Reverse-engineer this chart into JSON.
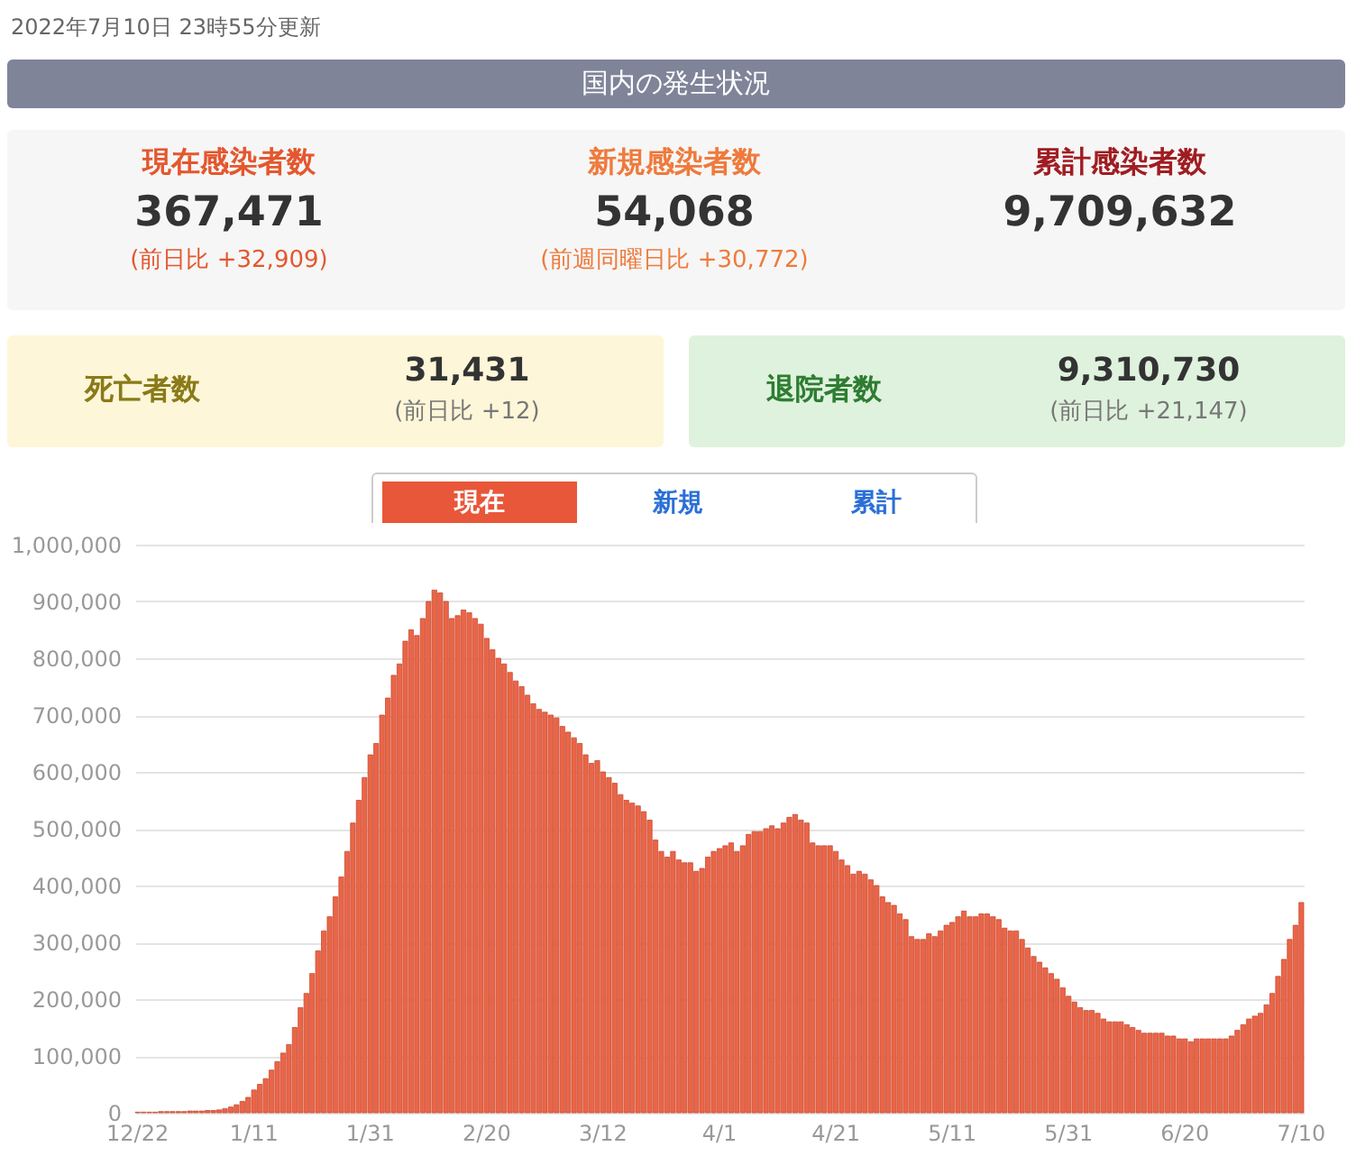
{
  "chart_data": [
    {
      "type": "other",
      "title": "国内の発生状況",
      "subtitle": "2022年7月10日 23時55分更新",
      "annotations": [
        "現在感染者数",
        "367,471",
        "(前日比 +32,909)",
        "新規感染者数",
        "54,068",
        "(前週同曜日比 +30,772)",
        "累計感染者数",
        "9,709,632",
        "死亡者数",
        "31,431",
        "(前日比 +12)",
        "退院者数",
        "9,310,730",
        "(前日比 +21,147)",
        "現在",
        "新規",
        "累計"
      ]
    },
    {
      "type": "bar",
      "color": "#ea6548",
      "ylim": [
        0,
        1000000
      ],
      "yticks": [
        0,
        {
          "value": 100000,
          "label": "100,000"
        },
        {
          "value": 200000,
          "label": "200,000"
        },
        {
          "value": 300000,
          "label": "300,000"
        },
        {
          "value": 400000,
          "label": "400,000"
        },
        {
          "value": 500000,
          "label": "500,000"
        },
        {
          "value": 600000,
          "label": "600,000"
        },
        {
          "value": 700000,
          "label": "700,000"
        },
        {
          "value": 800000,
          "label": "800,000"
        },
        {
          "value": 900000,
          "label": "900,000"
        },
        {
          "value": 1000000,
          "label": "1,000,000"
        }
      ],
      "grid": "y",
      "categories": [
        "12/22",
        null,
        null,
        null,
        null,
        null,
        null,
        null,
        null,
        null,
        null,
        null,
        null,
        null,
        null,
        null,
        null,
        null,
        null,
        null,
        "1/11",
        null,
        null,
        null,
        null,
        null,
        null,
        null,
        null,
        null,
        null,
        null,
        null,
        null,
        null,
        null,
        null,
        null,
        null,
        null,
        "1/31",
        null,
        null,
        null,
        null,
        null,
        null,
        null,
        null,
        null,
        null,
        null,
        null,
        null,
        null,
        null,
        null,
        null,
        null,
        null,
        "2/20",
        null,
        null,
        null,
        null,
        null,
        null,
        null,
        null,
        null,
        null,
        null,
        null,
        null,
        null,
        null,
        null,
        null,
        null,
        null,
        "3/12",
        null,
        null,
        null,
        null,
        null,
        null,
        null,
        null,
        null,
        null,
        null,
        null,
        null,
        null,
        null,
        null,
        null,
        null,
        null,
        "4/1",
        null,
        null,
        null,
        null,
        null,
        null,
        null,
        null,
        null,
        null,
        null,
        null,
        null,
        null,
        null,
        null,
        null,
        null,
        null,
        "4/21",
        null,
        null,
        null,
        null,
        null,
        null,
        null,
        null,
        null,
        null,
        null,
        null,
        null,
        null,
        null,
        null,
        null,
        null,
        null,
        "5/11",
        null,
        null,
        null,
        null,
        null,
        null,
        null,
        null,
        null,
        null,
        null,
        null,
        null,
        null,
        null,
        null,
        null,
        null,
        null,
        "5/31",
        null,
        null,
        null,
        null,
        null,
        null,
        null,
        null,
        null,
        null,
        null,
        null,
        null,
        null,
        null,
        null,
        null,
        null,
        null,
        "6/20",
        null,
        null,
        null,
        null,
        null,
        null,
        null,
        null,
        null,
        null,
        null,
        null,
        null,
        null,
        null,
        null,
        null,
        null,
        null,
        "7/10"
      ],
      "values": [
        1000,
        1000,
        1000,
        1000,
        2000,
        2000,
        2000,
        2000,
        2000,
        3000,
        3000,
        3000,
        4000,
        4000,
        5000,
        7000,
        10000,
        14000,
        20000,
        27000,
        40000,
        50000,
        60000,
        75000,
        90000,
        105000,
        120000,
        150000,
        185000,
        210000,
        245000,
        285000,
        320000,
        345000,
        380000,
        415000,
        460000,
        510000,
        550000,
        590000,
        630000,
        650000,
        700000,
        730000,
        770000,
        790000,
        830000,
        850000,
        840000,
        870000,
        900000,
        920000,
        915000,
        900000,
        870000,
        875000,
        885000,
        880000,
        870000,
        860000,
        835000,
        815000,
        800000,
        790000,
        775000,
        760000,
        750000,
        735000,
        720000,
        710000,
        705000,
        700000,
        695000,
        680000,
        670000,
        660000,
        650000,
        630000,
        615000,
        620000,
        600000,
        590000,
        580000,
        560000,
        550000,
        545000,
        540000,
        530000,
        515000,
        480000,
        460000,
        450000,
        460000,
        445000,
        440000,
        440000,
        425000,
        430000,
        450000,
        460000,
        465000,
        470000,
        475000,
        460000,
        470000,
        490000,
        495000,
        495000,
        500000,
        505000,
        500000,
        510000,
        520000,
        525000,
        515000,
        510000,
        475000,
        470000,
        470000,
        470000,
        460000,
        445000,
        435000,
        420000,
        425000,
        420000,
        410000,
        400000,
        380000,
        370000,
        365000,
        350000,
        340000,
        310000,
        305000,
        305000,
        315000,
        310000,
        320000,
        330000,
        335000,
        345000,
        355000,
        345000,
        345000,
        350000,
        350000,
        345000,
        340000,
        325000,
        320000,
        320000,
        305000,
        290000,
        275000,
        265000,
        255000,
        245000,
        235000,
        220000,
        205000,
        195000,
        185000,
        180000,
        180000,
        175000,
        165000,
        160000,
        160000,
        160000,
        155000,
        150000,
        145000,
        140000,
        140000,
        140000,
        140000,
        135000,
        135000,
        130000,
        130000,
        125000,
        130000,
        130000,
        130000,
        130000,
        130000,
        130000,
        135000,
        145000,
        155000,
        165000,
        170000,
        175000,
        190000,
        210000,
        240000,
        270000,
        305000,
        330000,
        370000
      ]
    }
  ]
}
